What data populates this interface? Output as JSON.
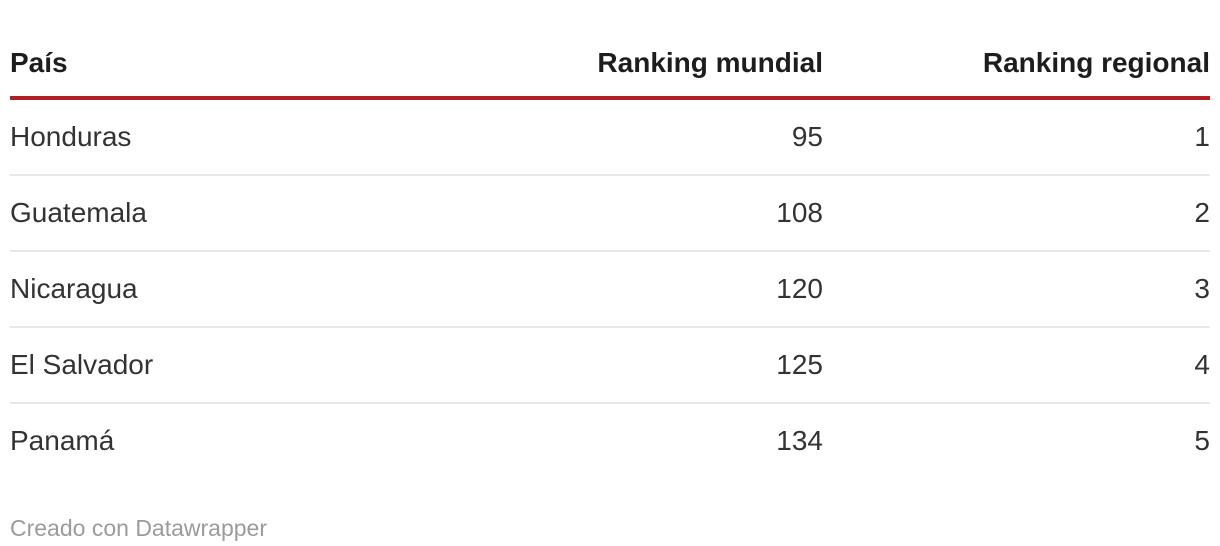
{
  "table": {
    "columns": [
      {
        "label": "País",
        "align": "left"
      },
      {
        "label": "Ranking mundial",
        "align": "right"
      },
      {
        "label": "Ranking regional",
        "align": "right"
      }
    ],
    "rows": [
      {
        "country": "Honduras",
        "world": "95",
        "regional": "1"
      },
      {
        "country": "Guatemala",
        "world": "108",
        "regional": "2"
      },
      {
        "country": "Nicaragua",
        "world": "120",
        "regional": "3"
      },
      {
        "country": "El Salvador",
        "world": "125",
        "regional": "4"
      },
      {
        "country": "Panamá",
        "world": "134",
        "regional": "5"
      }
    ]
  },
  "footer": {
    "attribution_prefix": "Creado con ",
    "attribution_link_label": "Datawrapper"
  },
  "colors": {
    "header_rule": "#b01f24",
    "row_divider": "#e8e8e8",
    "header_text": "#1d1d1d",
    "body_text": "#333333",
    "footer_text": "#9b9b9b"
  },
  "chart_data": {
    "type": "table",
    "columns": [
      "País",
      "Ranking mundial",
      "Ranking regional"
    ],
    "rows": [
      [
        "Honduras",
        95,
        1
      ],
      [
        "Guatemala",
        108,
        2
      ],
      [
        "Nicaragua",
        120,
        3
      ],
      [
        "El Salvador",
        125,
        4
      ],
      [
        "Panamá",
        134,
        5
      ]
    ],
    "attribution": "Creado con Datawrapper",
    "layout_hints": {
      "header_rule_color": "#b01f24",
      "numeric_columns_right_aligned": true,
      "row_dividers": true
    }
  }
}
